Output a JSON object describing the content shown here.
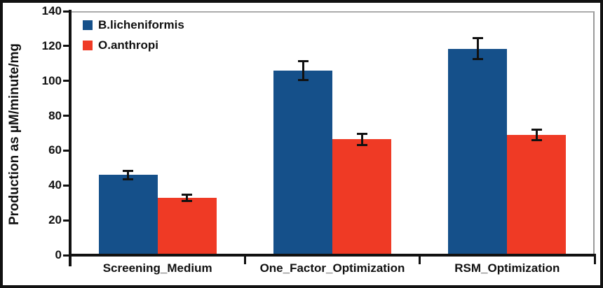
{
  "figure": {
    "background": "#ffffff",
    "border_color": "#111111",
    "frame_top_color": "#ababab",
    "frame_right_color": "#9a9a9a"
  },
  "chart_data": {
    "type": "bar",
    "title": "",
    "xlabel": "",
    "ylabel": "Production as µM/minute/mg",
    "categories": [
      "Screening_Medium",
      "One_Factor_Optimization",
      "RSM_Optimization"
    ],
    "series": [
      {
        "name": "B.licheniformis",
        "color": "#15508A",
        "values": [
          46,
          106,
          118.5
        ],
        "errors": [
          2.5,
          5.5,
          6
        ]
      },
      {
        "name": "O.anthropi",
        "color": "#EF3A25",
        "values": [
          33,
          66.5,
          69
        ],
        "errors": [
          1.8,
          3.2,
          3
        ]
      }
    ],
    "ylim": [
      0,
      140
    ],
    "yticks": [
      0,
      20,
      40,
      60,
      80,
      100,
      120,
      140
    ],
    "grid": false,
    "error_bars": true,
    "legend_position": "top-left"
  }
}
